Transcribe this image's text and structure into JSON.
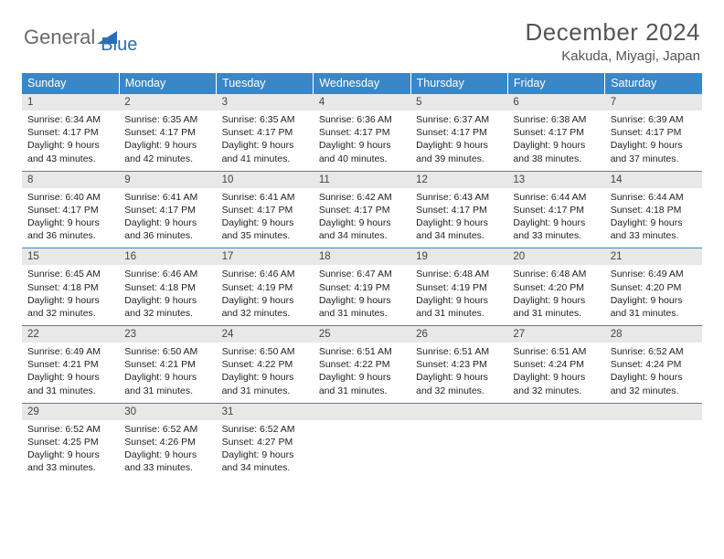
{
  "logo": {
    "text1": "General",
    "text2": "Blue"
  },
  "title": "December 2024",
  "location": "Kakuda, Miyagi, Japan",
  "colors": {
    "header_bg": "#3a87c8",
    "daynum_bg": "#e8e8e8",
    "rule": "#3a87c8",
    "logo_gray": "#6a6a6a",
    "logo_blue": "#2a6fb5"
  },
  "weekdays": [
    "Sunday",
    "Monday",
    "Tuesday",
    "Wednesday",
    "Thursday",
    "Friday",
    "Saturday"
  ],
  "weeks": [
    [
      {
        "n": "1",
        "sr": "6:34 AM",
        "ss": "4:17 PM",
        "dl": "9 hours and 43 minutes."
      },
      {
        "n": "2",
        "sr": "6:35 AM",
        "ss": "4:17 PM",
        "dl": "9 hours and 42 minutes."
      },
      {
        "n": "3",
        "sr": "6:35 AM",
        "ss": "4:17 PM",
        "dl": "9 hours and 41 minutes."
      },
      {
        "n": "4",
        "sr": "6:36 AM",
        "ss": "4:17 PM",
        "dl": "9 hours and 40 minutes."
      },
      {
        "n": "5",
        "sr": "6:37 AM",
        "ss": "4:17 PM",
        "dl": "9 hours and 39 minutes."
      },
      {
        "n": "6",
        "sr": "6:38 AM",
        "ss": "4:17 PM",
        "dl": "9 hours and 38 minutes."
      },
      {
        "n": "7",
        "sr": "6:39 AM",
        "ss": "4:17 PM",
        "dl": "9 hours and 37 minutes."
      }
    ],
    [
      {
        "n": "8",
        "sr": "6:40 AM",
        "ss": "4:17 PM",
        "dl": "9 hours and 36 minutes."
      },
      {
        "n": "9",
        "sr": "6:41 AM",
        "ss": "4:17 PM",
        "dl": "9 hours and 36 minutes."
      },
      {
        "n": "10",
        "sr": "6:41 AM",
        "ss": "4:17 PM",
        "dl": "9 hours and 35 minutes."
      },
      {
        "n": "11",
        "sr": "6:42 AM",
        "ss": "4:17 PM",
        "dl": "9 hours and 34 minutes."
      },
      {
        "n": "12",
        "sr": "6:43 AM",
        "ss": "4:17 PM",
        "dl": "9 hours and 34 minutes."
      },
      {
        "n": "13",
        "sr": "6:44 AM",
        "ss": "4:17 PM",
        "dl": "9 hours and 33 minutes."
      },
      {
        "n": "14",
        "sr": "6:44 AM",
        "ss": "4:18 PM",
        "dl": "9 hours and 33 minutes."
      }
    ],
    [
      {
        "n": "15",
        "sr": "6:45 AM",
        "ss": "4:18 PM",
        "dl": "9 hours and 32 minutes."
      },
      {
        "n": "16",
        "sr": "6:46 AM",
        "ss": "4:18 PM",
        "dl": "9 hours and 32 minutes."
      },
      {
        "n": "17",
        "sr": "6:46 AM",
        "ss": "4:19 PM",
        "dl": "9 hours and 32 minutes."
      },
      {
        "n": "18",
        "sr": "6:47 AM",
        "ss": "4:19 PM",
        "dl": "9 hours and 31 minutes."
      },
      {
        "n": "19",
        "sr": "6:48 AM",
        "ss": "4:19 PM",
        "dl": "9 hours and 31 minutes."
      },
      {
        "n": "20",
        "sr": "6:48 AM",
        "ss": "4:20 PM",
        "dl": "9 hours and 31 minutes."
      },
      {
        "n": "21",
        "sr": "6:49 AM",
        "ss": "4:20 PM",
        "dl": "9 hours and 31 minutes."
      }
    ],
    [
      {
        "n": "22",
        "sr": "6:49 AM",
        "ss": "4:21 PM",
        "dl": "9 hours and 31 minutes."
      },
      {
        "n": "23",
        "sr": "6:50 AM",
        "ss": "4:21 PM",
        "dl": "9 hours and 31 minutes."
      },
      {
        "n": "24",
        "sr": "6:50 AM",
        "ss": "4:22 PM",
        "dl": "9 hours and 31 minutes."
      },
      {
        "n": "25",
        "sr": "6:51 AM",
        "ss": "4:22 PM",
        "dl": "9 hours and 31 minutes."
      },
      {
        "n": "26",
        "sr": "6:51 AM",
        "ss": "4:23 PM",
        "dl": "9 hours and 32 minutes."
      },
      {
        "n": "27",
        "sr": "6:51 AM",
        "ss": "4:24 PM",
        "dl": "9 hours and 32 minutes."
      },
      {
        "n": "28",
        "sr": "6:52 AM",
        "ss": "4:24 PM",
        "dl": "9 hours and 32 minutes."
      }
    ],
    [
      {
        "n": "29",
        "sr": "6:52 AM",
        "ss": "4:25 PM",
        "dl": "9 hours and 33 minutes."
      },
      {
        "n": "30",
        "sr": "6:52 AM",
        "ss": "4:26 PM",
        "dl": "9 hours and 33 minutes."
      },
      {
        "n": "31",
        "sr": "6:52 AM",
        "ss": "4:27 PM",
        "dl": "9 hours and 34 minutes."
      },
      null,
      null,
      null,
      null
    ]
  ],
  "labels": {
    "sunrise": "Sunrise:",
    "sunset": "Sunset:",
    "daylight": "Daylight:"
  }
}
